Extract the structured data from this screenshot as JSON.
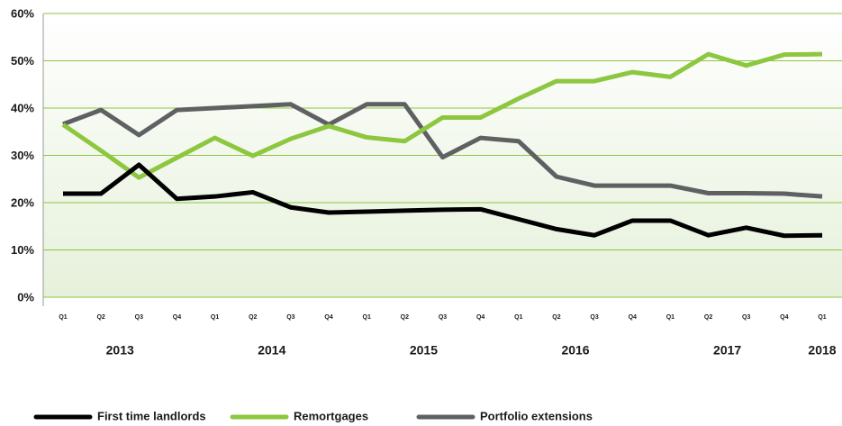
{
  "chart_data": {
    "type": "line",
    "categories": [
      "Q1",
      "Q2",
      "Q3",
      "Q4",
      "Q1",
      "Q2",
      "Q3",
      "Q4",
      "Q1",
      "Q2",
      "Q3",
      "Q4",
      "Q1",
      "Q2",
      "Q3",
      "Q4",
      "Q1",
      "Q2",
      "Q3",
      "Q4",
      "Q1"
    ],
    "category_groups": [
      "2013",
      "2014",
      "2015",
      "2016",
      "2017",
      "2018"
    ],
    "series": [
      {
        "name": "First time landlords",
        "color": "#000000",
        "values": [
          21.9,
          21.9,
          28,
          20.8,
          21.3,
          22.2,
          19,
          17.9,
          18.1,
          18.3,
          18.5,
          18.6,
          16.5,
          14.4,
          13.1,
          16.2,
          16.2,
          13.1,
          14.7,
          13,
          13.1
        ]
      },
      {
        "name": "Remortgages",
        "color": "#8dc63f",
        "values": [
          36.5,
          31,
          25.3,
          29.5,
          33.7,
          29.9,
          33.5,
          36.2,
          33.8,
          33,
          38,
          38,
          42,
          45.7,
          45.7,
          47.6,
          46.6,
          51.4,
          49,
          51.3,
          51.4
        ]
      },
      {
        "name": "Portfolio extensions",
        "color": "#5f6062",
        "values": [
          36.6,
          39.6,
          34.3,
          39.6,
          40,
          40.4,
          40.8,
          36.5,
          40.8,
          40.8,
          29.6,
          33.7,
          33,
          25.5,
          23.6,
          23.6,
          23.6,
          22,
          22,
          21.9,
          21.3
        ]
      }
    ],
    "ylim": [
      0,
      60
    ],
    "yticks": [
      {
        "value": 0,
        "label": "0%"
      },
      {
        "value": 10,
        "label": "10%"
      },
      {
        "value": 20,
        "label": "20%"
      },
      {
        "value": 30,
        "label": "30%"
      },
      {
        "value": 40,
        "label": "40%"
      },
      {
        "value": 50,
        "label": "50%"
      },
      {
        "value": 60,
        "label": "60%"
      }
    ],
    "grid": true,
    "legend": "bottom"
  }
}
